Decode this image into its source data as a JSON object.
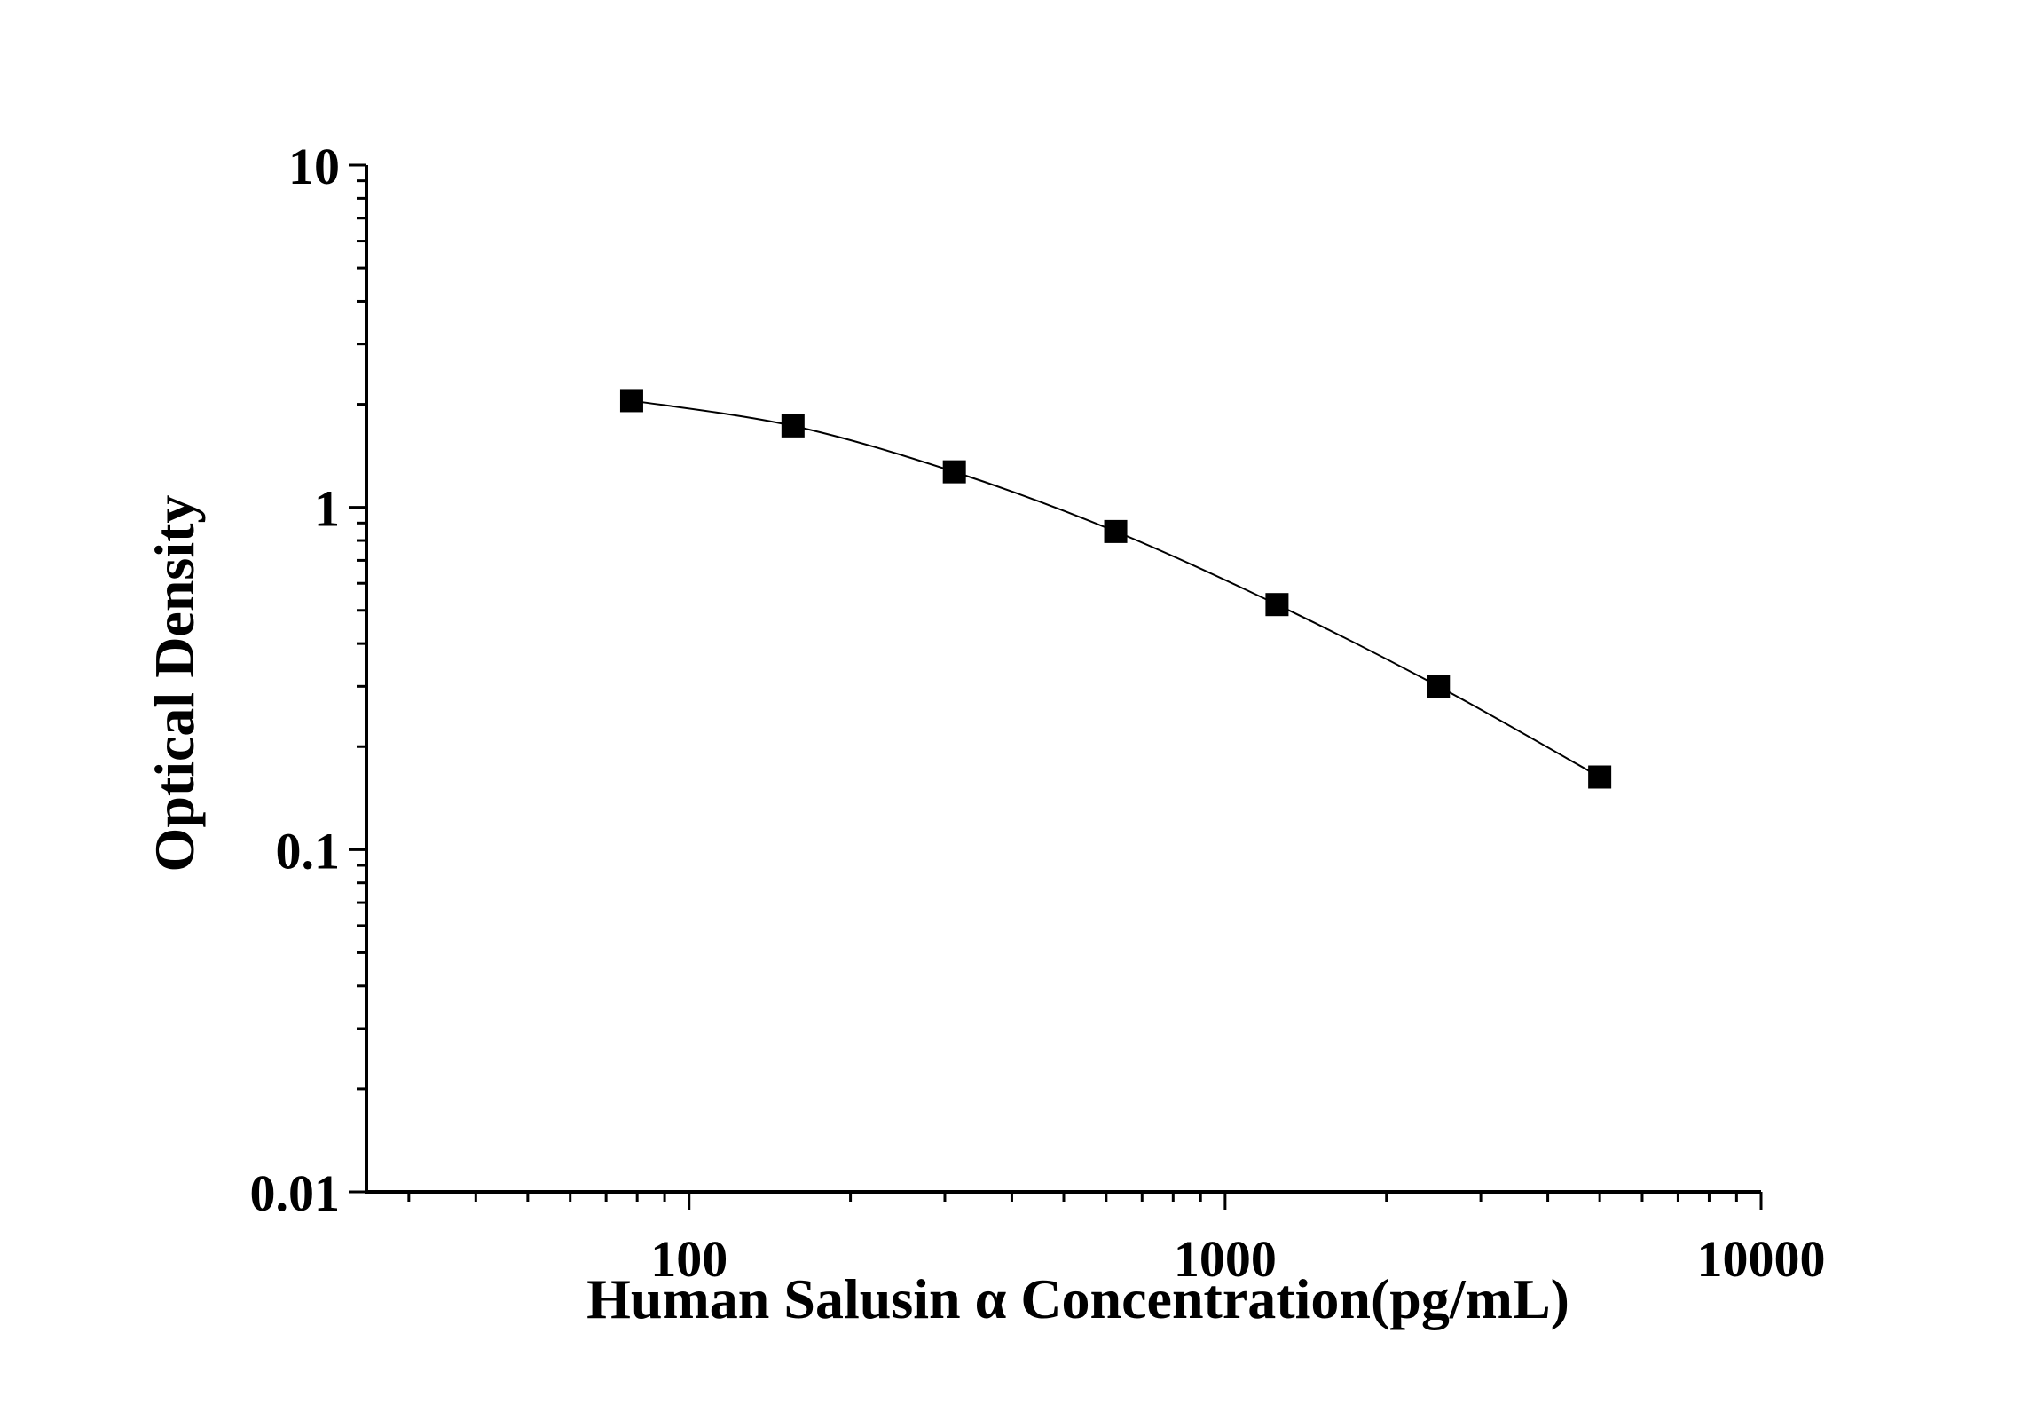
{
  "chart_data": {
    "type": "scatter",
    "title": "",
    "xlabel": "Human Salusin α Concentration(pg/mL)",
    "ylabel": "Optical Density",
    "x_scale": "log",
    "y_scale": "log",
    "xlim": [
      25,
      10000
    ],
    "ylim": [
      0.01,
      10
    ],
    "x_tick_labels": [
      "100",
      "1000",
      "10000"
    ],
    "x_ticks": [
      100,
      1000,
      10000
    ],
    "y_tick_labels": [
      "0.01",
      "0.1",
      "1",
      "10"
    ],
    "y_ticks": [
      0.01,
      0.1,
      1,
      10
    ],
    "grid": false,
    "series": [
      {
        "x": [
          78.125,
          156.25,
          312.5,
          625,
          1250,
          2500,
          5000
        ],
        "y": [
          2.05,
          1.73,
          1.27,
          0.85,
          0.52,
          0.3,
          0.163
        ],
        "marker": "square",
        "line": "smooth",
        "color": "#000000"
      }
    ]
  }
}
